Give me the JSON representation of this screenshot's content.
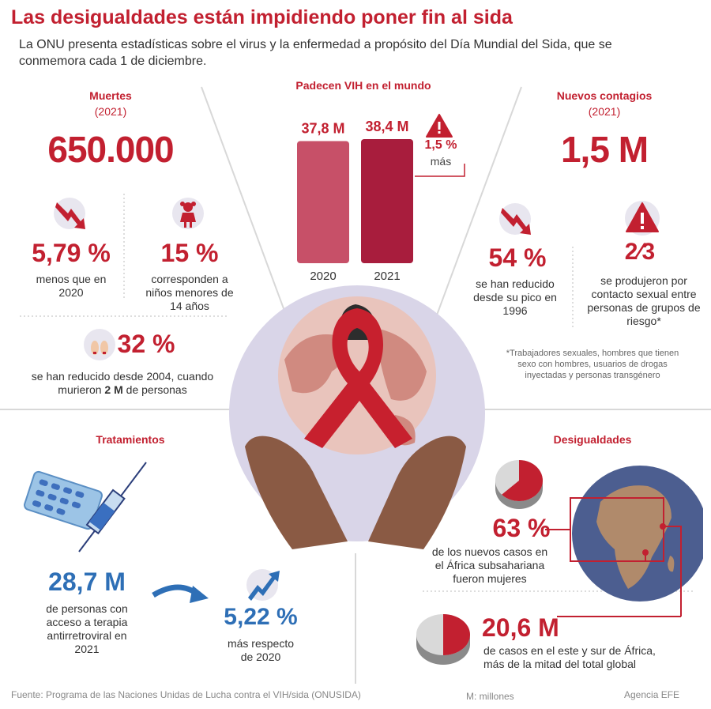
{
  "title": "Las desigualdades están impidiendo poner fin al sida",
  "subtitle": "La ONU presenta estadísticas sobre el virus y la enfermedad a propósito del Día Mundial del Sida, que se conmemora cada 1 de diciembre.",
  "deaths": {
    "heading": "Muertes",
    "year": "(2021)",
    "value": "650.000",
    "stat1_value": "5,79 %",
    "stat1_desc": "menos que en 2020",
    "stat2_value": "15 %",
    "stat2_desc": "corresponden a niños menores de 14 años",
    "stat3_value": "32 %",
    "stat3_desc_a": "se han reducido desde 2004, cuando murieron ",
    "stat3_desc_bold": "2 M",
    "stat3_desc_b": " de personas"
  },
  "hiv": {
    "heading": "Padecen VIH en el mundo",
    "increase_value": "1,5 %",
    "increase_label": "más"
  },
  "chart_data": {
    "type": "bar",
    "title": "Padecen VIH en el mundo",
    "categories": [
      "2020",
      "2021"
    ],
    "values": [
      37.8,
      38.4
    ],
    "value_labels": [
      "37,8 M",
      "38,4 M"
    ],
    "colors": [
      "#c75068",
      "#a81d3d"
    ]
  },
  "new_infections": {
    "heading": "Nuevos contagios",
    "year": "(2021)",
    "value": "1,5 M",
    "stat1_value": "54 %",
    "stat1_desc": "se han reducido desde su pico en 1996",
    "stat2_value": "2⁄3",
    "stat2_desc": "se produjeron por contacto sexual entre personas de grupos de riesgo*",
    "footnote": "*Trabajadores sexuales, hombres que tienen sexo con hombres, usuarios de drogas inyectadas y personas transgénero"
  },
  "treatments": {
    "heading": "Tratamientos",
    "stat1_value": "28,7 M",
    "stat1_desc": "de personas con acceso a terapia antirretroviral en 2021",
    "stat2_value": "5,22 %",
    "stat2_desc": "más respecto de 2020"
  },
  "inequalities": {
    "heading": "Desigualdades",
    "stat1_value": "63 %",
    "stat1_desc": "de los nuevos casos en el África subsahariana fueron mujeres",
    "stat2_value": "20,6 M",
    "stat2_desc": "de casos en el este y sur de África, más de la mitad del total global",
    "pie1_fraction": 0.63,
    "pie2_fraction": 0.5
  },
  "footer": {
    "source": "Fuente: Programa de las Naciones Unidas de Lucha contra el VIH/sida (ONUSIDA)",
    "units": "M: millones",
    "agency": "Agencia EFE"
  },
  "colors": {
    "red": "#c22030",
    "blue": "#2e6fb6",
    "globe_bg": "#d9d5e8"
  }
}
